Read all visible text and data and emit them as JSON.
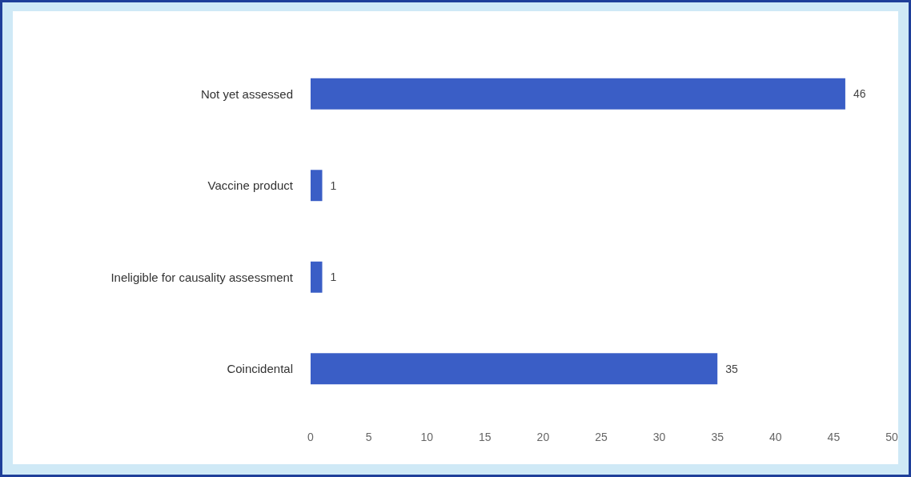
{
  "chart_data": {
    "type": "bar",
    "orientation": "horizontal",
    "categories": [
      "Not yet assessed",
      "Vaccine product",
      "Ineligible for causality assessment",
      "Coincidental"
    ],
    "values": [
      46,
      1,
      1,
      35
    ],
    "color": "#3a5ec6",
    "xlim": [
      0,
      50
    ],
    "xticks": [
      0,
      5,
      10,
      15,
      20,
      25,
      30,
      35,
      40,
      45,
      50
    ],
    "grid": false,
    "data_labels": true
  }
}
